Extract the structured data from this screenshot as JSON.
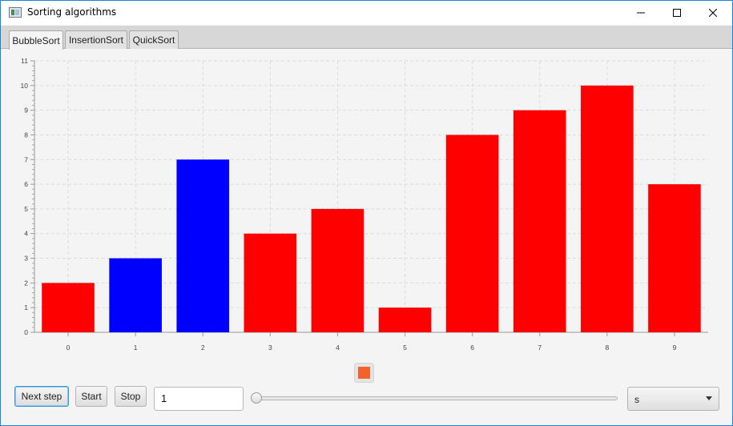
{
  "window": {
    "title": "Sorting algorithms"
  },
  "tabs": [
    {
      "label": "BubbleSort",
      "active": true
    },
    {
      "label": "InsertionSort",
      "active": false
    },
    {
      "label": "QuickSort",
      "active": false
    }
  ],
  "chart_data": {
    "type": "bar",
    "categories": [
      "0",
      "1",
      "2",
      "3",
      "4",
      "5",
      "6",
      "7",
      "8",
      "9"
    ],
    "values": [
      2,
      3,
      7,
      4,
      5,
      1,
      8,
      9,
      10,
      6
    ],
    "bar_colors": [
      "#ff0000",
      "#0000ff",
      "#0000ff",
      "#ff0000",
      "#ff0000",
      "#ff0000",
      "#ff0000",
      "#ff0000",
      "#ff0000",
      "#ff0000"
    ],
    "ylim": [
      0,
      11
    ],
    "yticks": [
      0,
      1,
      2,
      3,
      4,
      5,
      6,
      7,
      8,
      9,
      10,
      11
    ],
    "grid": true,
    "legend": {
      "placement": "bottom",
      "color": "#f3622d"
    }
  },
  "controls": {
    "next_step_label": "Next step",
    "start_label": "Start",
    "stop_label": "Stop",
    "step_input_value": "1",
    "speed_slider_value": 0,
    "unit_select_value": "s"
  }
}
